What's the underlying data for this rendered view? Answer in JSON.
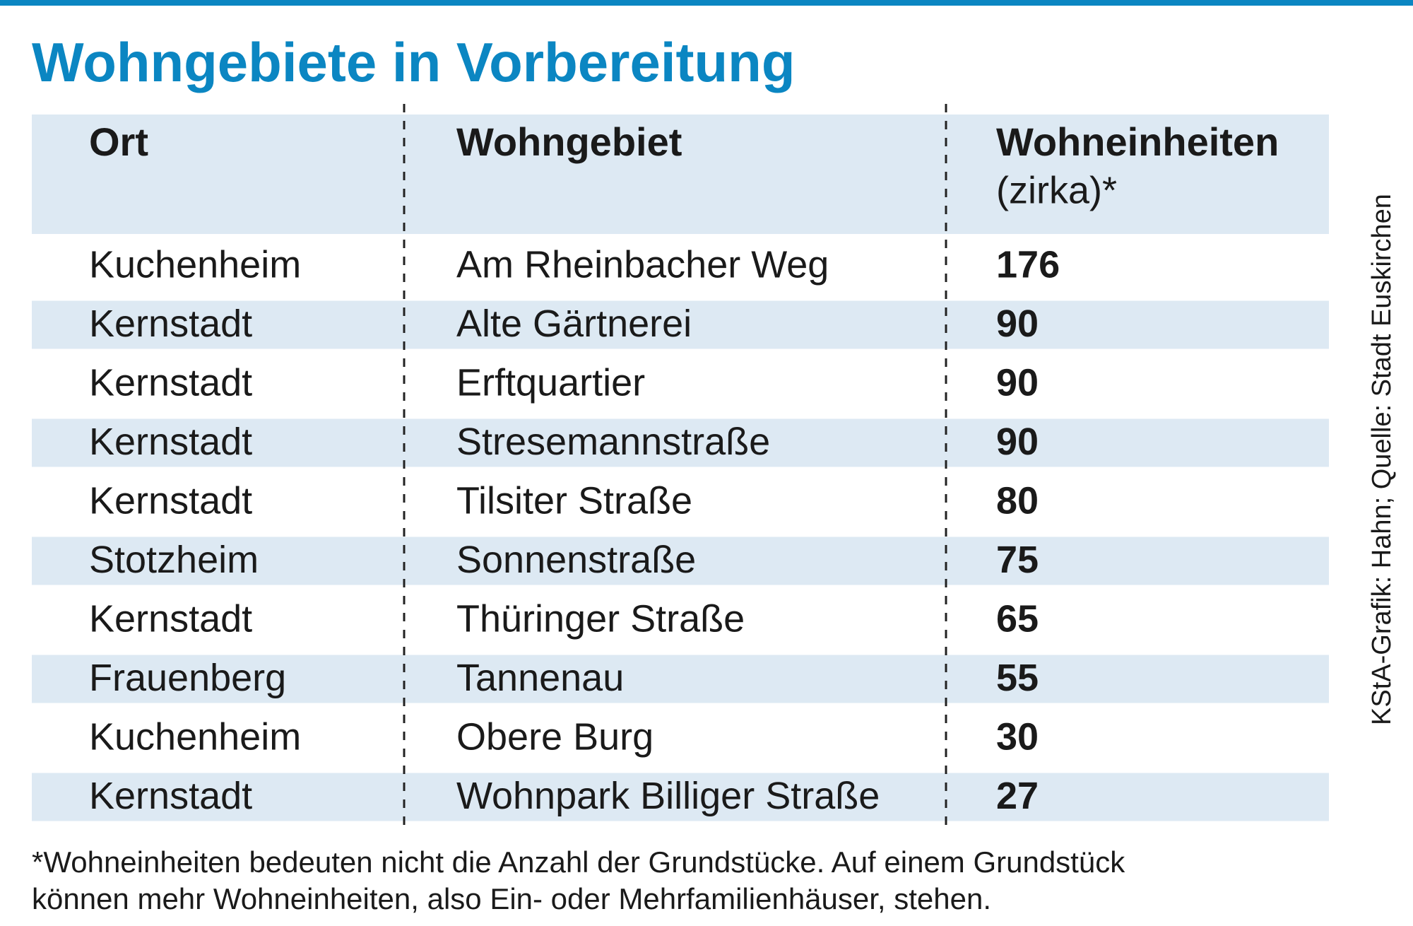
{
  "header": {
    "title": "Wohngebiete in Vorbereitung"
  },
  "table": {
    "columns": [
      "Ort",
      "Wohngebiet",
      "Wohneinheiten"
    ],
    "column_note": "(zirka)*",
    "rows": [
      [
        "Kuchenheim",
        "Am Rheinbacher Weg",
        "176"
      ],
      [
        "Kernstadt",
        "Alte Gärtnerei",
        "90"
      ],
      [
        "Kernstadt",
        "Erftquartier",
        "90"
      ],
      [
        "Kernstadt",
        "Stresemannstraße",
        "90"
      ],
      [
        "Kernstadt",
        "Tilsiter Straße",
        "80"
      ],
      [
        "Stotzheim",
        "Sonnenstraße",
        "75"
      ],
      [
        "Kernstadt",
        "Thüringer Straße",
        "65"
      ],
      [
        "Frauenberg",
        "Tannenau",
        "55"
      ],
      [
        "Kuchenheim",
        "Obere Burg",
        "30"
      ],
      [
        "Kernstadt",
        "Wohnpark Billiger Straße",
        "27"
      ]
    ]
  },
  "footnote": [
    "*Wohneinheiten bedeuten nicht die Anzahl der Grundstücke. Auf einem Grundstück",
    "können mehr Wohneinheiten, also Ein- oder Mehrfamilienhäuser, stehen."
  ],
  "source": "KStA-Grafik: Hahn; Quelle: Stadt Euskirchen"
}
